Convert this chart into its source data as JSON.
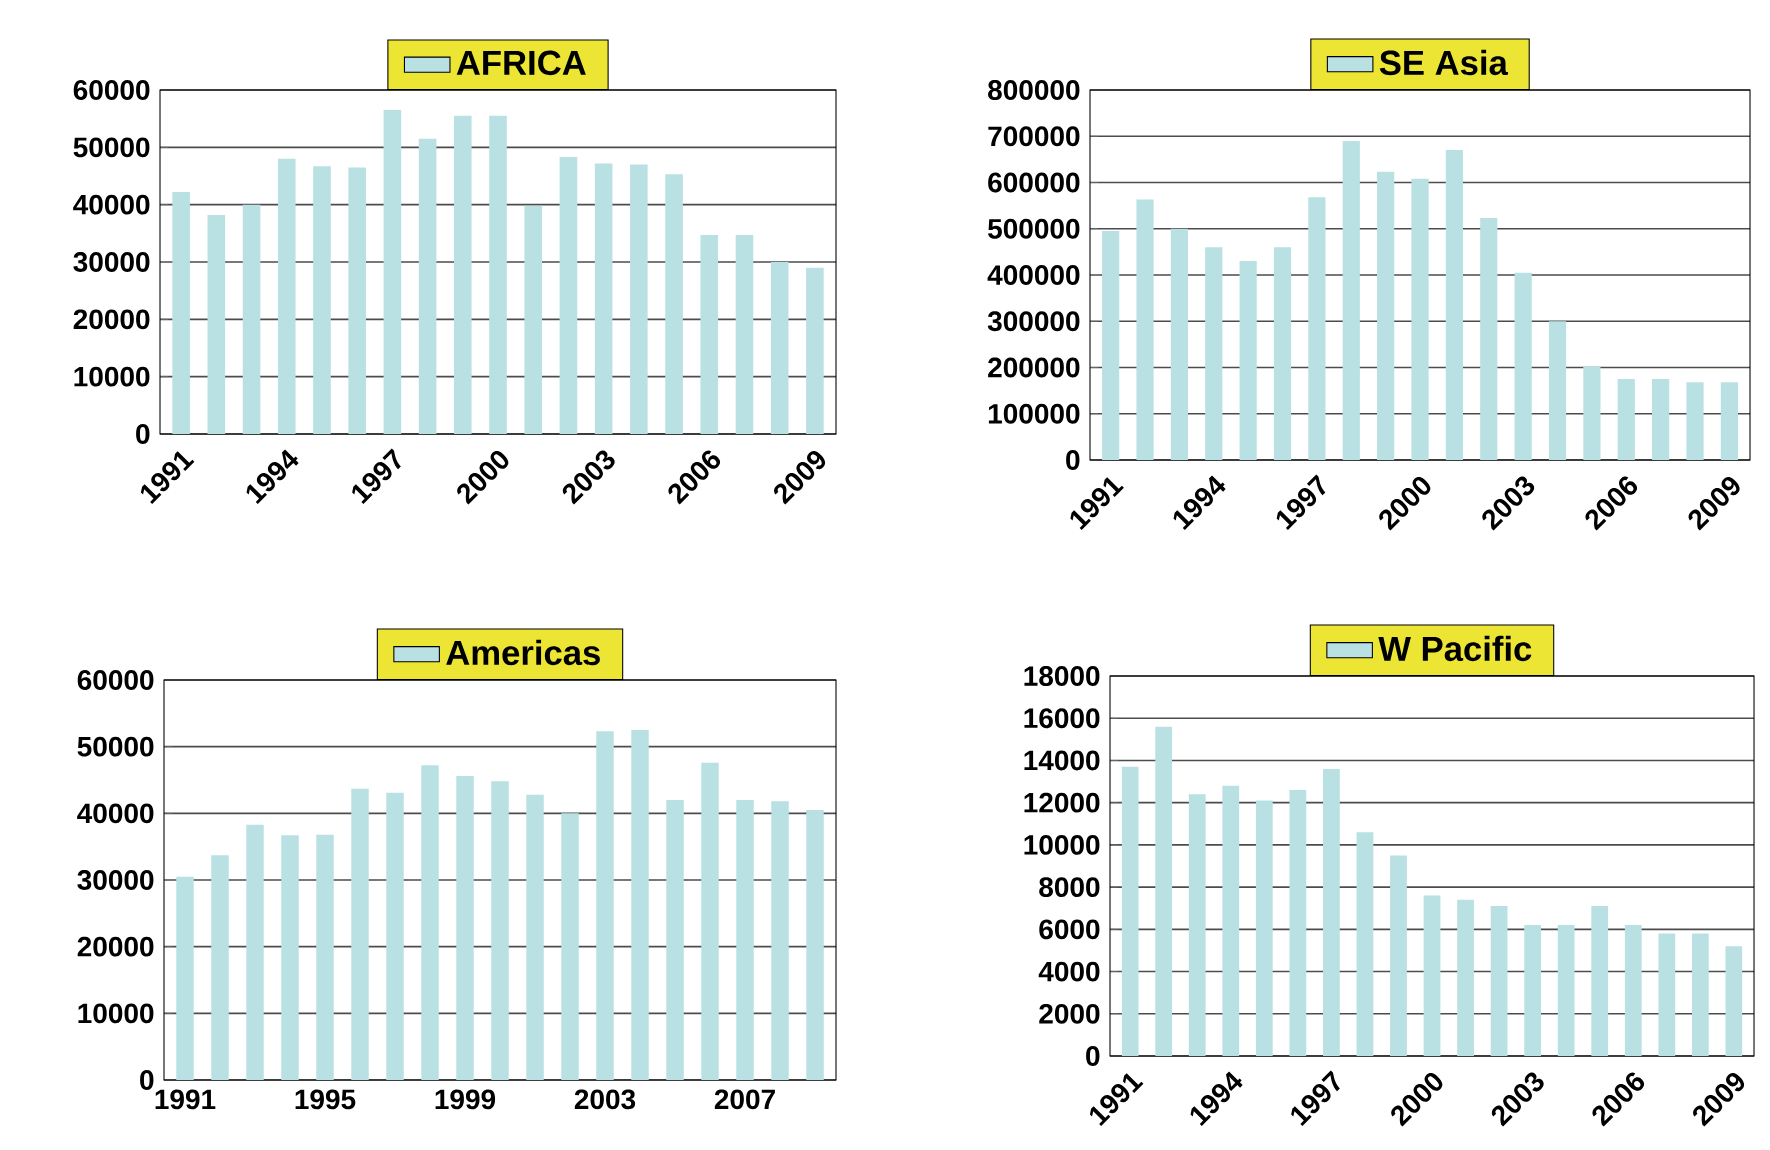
{
  "chart_data": [
    {
      "type": "bar",
      "categories": [
        "1991",
        null,
        null,
        "1994",
        null,
        null,
        "1997",
        null,
        null,
        "2000",
        null,
        null,
        "2003",
        null,
        null,
        "2006",
        null,
        null,
        "2009"
      ],
      "series": [
        {
          "name": "AFRICA",
          "color": "#b9e0e3",
          "values": [
            42200,
            38200,
            40000,
            48000,
            46700,
            46500,
            56500,
            51500,
            55500,
            55500,
            39800,
            48300,
            47200,
            47000,
            45300,
            34700,
            34700,
            30000,
            29000
          ]
        }
      ],
      "ylim": [
        0,
        60000
      ],
      "yticks": [
        0,
        10000,
        20000,
        30000,
        40000,
        50000,
        60000
      ],
      "grid": "y",
      "legend": "top"
    },
    {
      "type": "bar",
      "categories": [
        "1991",
        null,
        null,
        "1994",
        null,
        null,
        "1997",
        null,
        null,
        "2000",
        null,
        null,
        "2003",
        null,
        null,
        "2006",
        null,
        null,
        "2009"
      ],
      "series": [
        {
          "name": "SE Asia",
          "color": "#b9e0e3",
          "values": [
            495000,
            563000,
            500000,
            460000,
            430000,
            460000,
            568000,
            690000,
            623000,
            608000,
            670000,
            523000,
            405000,
            300000,
            202000,
            175000,
            175000,
            168000,
            168000
          ]
        }
      ],
      "ylim": [
        0,
        800000
      ],
      "yticks": [
        0,
        100000,
        200000,
        300000,
        400000,
        500000,
        600000,
        700000,
        800000
      ],
      "grid": "y",
      "legend": "top"
    },
    {
      "type": "bar",
      "categories": [
        "1991",
        null,
        null,
        null,
        "1995",
        null,
        null,
        null,
        "1999",
        null,
        null,
        null,
        "2003",
        null,
        null,
        null,
        "2007",
        null,
        null
      ],
      "series": [
        {
          "name": "Americas",
          "color": "#b9e0e3",
          "values": [
            30500,
            33700,
            38300,
            36700,
            36800,
            43700,
            43100,
            47200,
            45600,
            44800,
            42800,
            40000,
            52300,
            52500,
            42000,
            47600,
            42000,
            41800,
            40500
          ]
        }
      ],
      "ylim": [
        0,
        60000
      ],
      "yticks": [
        0,
        10000,
        20000,
        30000,
        40000,
        50000,
        60000
      ],
      "grid": "y",
      "legend": "top"
    },
    {
      "type": "bar",
      "categories": [
        "1991",
        null,
        null,
        "1994",
        null,
        null,
        "1997",
        null,
        null,
        "2000",
        null,
        null,
        "2003",
        null,
        null,
        "2006",
        null,
        null,
        "2009"
      ],
      "series": [
        {
          "name": "W Pacific",
          "color": "#b9e0e3",
          "values": [
            13700,
            15600,
            12400,
            12800,
            12100,
            12600,
            13600,
            10600,
            9500,
            7600,
            7400,
            7100,
            6200,
            6200,
            7100,
            6200,
            5800,
            5800,
            5200
          ]
        }
      ],
      "ylim": [
        0,
        18000
      ],
      "yticks": [
        0,
        2000,
        4000,
        6000,
        8000,
        10000,
        12000,
        14000,
        16000,
        18000
      ],
      "grid": "y",
      "legend": "top"
    }
  ]
}
